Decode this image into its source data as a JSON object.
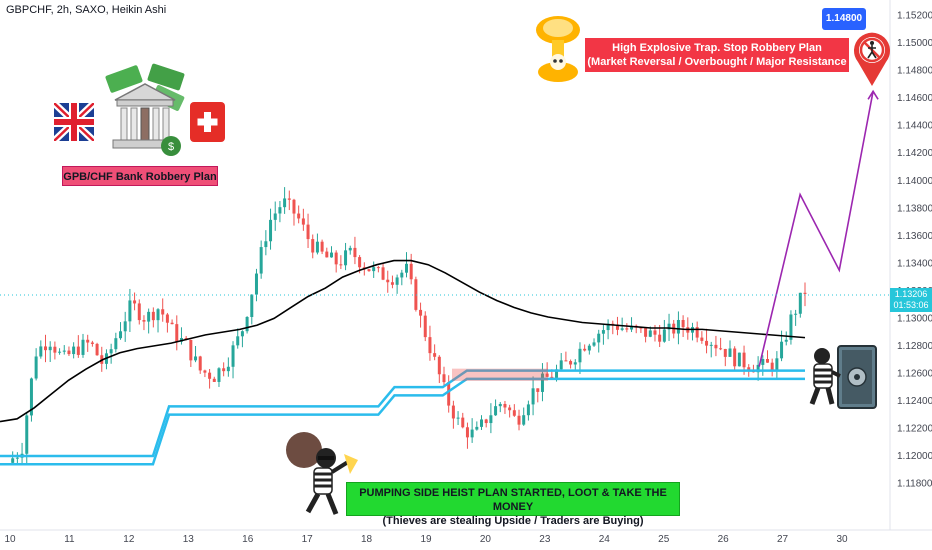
{
  "header": {
    "symbol_line": "GBPCHF, 2h, SAXO, Heikin Ashi"
  },
  "current_price": {
    "value": "1.13206",
    "countdown": "01:53:06"
  },
  "annotations": {
    "title_box": "GPB/CHF Bank Robbery Plan",
    "target_label": "1.14800",
    "red_box_line1": "High Explosive Trap. Stop Robbery Plan",
    "red_box_line2": "(Market Reversal / Overbought / Major Resistance",
    "green_box_line1": "PUMPING SIDE HEIST PLAN STARTED, LOOT & TAKE THE MONEY",
    "green_box_line2": "(Thieves are stealing Upside / Traders are Buying)"
  },
  "icons": [
    "uk-flag-icon",
    "bank-money-icon",
    "swiss-flag-icon",
    "explosion-skull-icon",
    "no-entry-icon",
    "thief-with-bag-icon",
    "thief-safe-icon"
  ],
  "colors": {
    "bull": "#26a69a",
    "bear": "#ef5350",
    "ma": "#000000",
    "band": "#2bbcec",
    "projection": "#9c27b0",
    "red_box": "#f23645",
    "green_box": "#22d930",
    "title_box": "#ef4f77",
    "price_tag": "#26c6da",
    "target_badge": "#2962ff"
  },
  "chart_data": {
    "type": "candlestick",
    "title": "GBPCHF, 2h, SAXO, Heikin Ashi",
    "x_ticks": [
      "10",
      "11",
      "12",
      "13",
      "16",
      "17",
      "18",
      "19",
      "20",
      "23",
      "24",
      "25",
      "26",
      "27",
      "30"
    ],
    "y_ticks": [
      1.152,
      1.15,
      1.148,
      1.146,
      1.144,
      1.142,
      1.14,
      1.138,
      1.136,
      1.134,
      1.132,
      1.13,
      1.128,
      1.126,
      1.124,
      1.122,
      1.12,
      1.118
    ],
    "y_tick_labels": [
      "1.15200",
      "1.15000",
      "1.14800",
      "1.14600",
      "1.14400",
      "1.14200",
      "1.14000",
      "1.13800",
      "1.13600",
      "1.13400",
      "1.13200",
      "1.13000",
      "1.12800",
      "1.12600",
      "1.12400",
      "1.12200",
      "1.12000",
      "1.11800"
    ],
    "ylim": [
      1.1168,
      1.1527
    ],
    "grid": false,
    "close_path": [
      [
        0,
        1.1195
      ],
      [
        1,
        1.1205
      ],
      [
        2,
        1.1275
      ],
      [
        3,
        1.1285
      ],
      [
        4,
        1.127
      ],
      [
        5,
        1.1278
      ],
      [
        6,
        1.1282
      ],
      [
        7,
        1.1265
      ],
      [
        8,
        1.129
      ],
      [
        9,
        1.131
      ],
      [
        10,
        1.13
      ],
      [
        11,
        1.1308
      ],
      [
        12,
        1.129
      ],
      [
        13,
        1.128
      ],
      [
        14,
        1.1262
      ],
      [
        15,
        1.1258
      ],
      [
        16,
        1.127
      ],
      [
        17,
        1.129
      ],
      [
        18,
        1.133
      ],
      [
        19,
        1.137
      ],
      [
        20,
        1.1385
      ],
      [
        21,
        1.1375
      ],
      [
        22,
        1.1355
      ],
      [
        23,
        1.1345
      ],
      [
        24,
        1.134
      ],
      [
        25,
        1.1348
      ],
      [
        26,
        1.1338
      ],
      [
        27,
        1.1332
      ],
      [
        28,
        1.133
      ],
      [
        29,
        1.1335
      ],
      [
        30,
        1.13
      ],
      [
        31,
        1.127
      ],
      [
        32,
        1.124
      ],
      [
        33,
        1.122
      ],
      [
        34,
        1.1215
      ],
      [
        35,
        1.123
      ],
      [
        36,
        1.124
      ],
      [
        37,
        1.1225
      ],
      [
        38,
        1.1245
      ],
      [
        39,
        1.1255
      ],
      [
        40,
        1.1262
      ],
      [
        41,
        1.127
      ],
      [
        42,
        1.1282
      ],
      [
        43,
        1.129
      ],
      [
        44,
        1.1296
      ],
      [
        45,
        1.1292
      ],
      [
        46,
        1.129
      ],
      [
        47,
        1.1288
      ],
      [
        48,
        1.129
      ],
      [
        49,
        1.1295
      ],
      [
        50,
        1.1292
      ],
      [
        51,
        1.1285
      ],
      [
        52,
        1.1278
      ],
      [
        53,
        1.127
      ],
      [
        54,
        1.1266
      ],
      [
        55,
        1.1265
      ],
      [
        56,
        1.1268
      ],
      [
        57,
        1.13
      ],
      [
        58,
        1.132
      ]
    ],
    "ma_path": [
      [
        0,
        1.1225
      ],
      [
        1,
        1.1227
      ],
      [
        2,
        1.1235
      ],
      [
        3,
        1.1245
      ],
      [
        4,
        1.1255
      ],
      [
        5,
        1.1263
      ],
      [
        6,
        1.127
      ],
      [
        7,
        1.1275
      ],
      [
        8,
        1.1278
      ],
      [
        9,
        1.128
      ],
      [
        10,
        1.1282
      ],
      [
        11,
        1.1285
      ],
      [
        12,
        1.1288
      ],
      [
        13,
        1.129
      ],
      [
        14,
        1.1292
      ],
      [
        15,
        1.1295
      ],
      [
        16,
        1.13
      ],
      [
        17,
        1.1308
      ],
      [
        18,
        1.1316
      ],
      [
        19,
        1.1322
      ],
      [
        20,
        1.133
      ],
      [
        21,
        1.1335
      ],
      [
        22,
        1.1339
      ],
      [
        23,
        1.1342
      ],
      [
        24,
        1.1342
      ],
      [
        25,
        1.1339
      ],
      [
        26,
        1.1333
      ],
      [
        27,
        1.1326
      ],
      [
        28,
        1.1319
      ],
      [
        29,
        1.1313
      ],
      [
        30,
        1.1308
      ],
      [
        31,
        1.1304
      ],
      [
        32,
        1.1301
      ],
      [
        33,
        1.1299
      ],
      [
        34,
        1.1297
      ],
      [
        35,
        1.1296
      ],
      [
        36,
        1.1295
      ],
      [
        37,
        1.1294
      ],
      [
        38,
        1.1293
      ],
      [
        39,
        1.1293
      ],
      [
        40,
        1.1292
      ],
      [
        41,
        1.1292
      ],
      [
        42,
        1.1291
      ],
      [
        43,
        1.129
      ],
      [
        44,
        1.1289
      ],
      [
        45,
        1.1288
      ],
      [
        46,
        1.1287
      ],
      [
        47,
        1.1286
      ]
    ],
    "band_upper": [
      [
        0,
        1.12
      ],
      [
        0.19,
        1.12
      ],
      [
        0.21,
        1.1236
      ],
      [
        0.47,
        1.1236
      ],
      [
        0.49,
        1.125
      ],
      [
        0.55,
        1.125
      ],
      [
        0.58,
        1.1262
      ],
      [
        1.0,
        1.1262
      ]
    ],
    "band_lower": [
      [
        0,
        1.1194
      ],
      [
        0.19,
        1.1194
      ],
      [
        0.21,
        1.123
      ],
      [
        0.47,
        1.123
      ],
      [
        0.49,
        1.1244
      ],
      [
        0.55,
        1.1244
      ],
      [
        0.58,
        1.1256
      ],
      [
        1.0,
        1.1256
      ]
    ],
    "projection": [
      [
        0.853,
        1.1265
      ],
      [
        0.899,
        1.139
      ],
      [
        0.943,
        1.1335
      ],
      [
        0.981,
        1.1465
      ]
    ]
  }
}
